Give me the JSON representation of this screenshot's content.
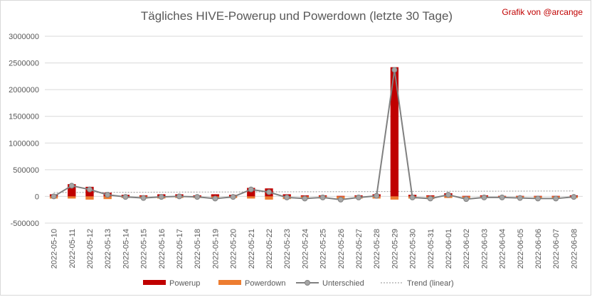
{
  "title": "Tägliches HIVE-Powerup und Powerdown (letzte 30 Tage)",
  "credit": "Grafik von @arcange",
  "chart_data": {
    "type": "bar",
    "title": "Tägliches HIVE-Powerup und Powerdown (letzte 30 Tage)",
    "categories": [
      "2022-05-10",
      "2022-05-11",
      "2022-05-12",
      "2022-05-13",
      "2022-05-14",
      "2022-05-15",
      "2022-05-16",
      "2022-05-17",
      "2022-05-18",
      "2022-05-19",
      "2022-05-20",
      "2022-05-21",
      "2022-05-22",
      "2022-05-23",
      "2022-05-24",
      "2022-05-25",
      "2022-05-26",
      "2022-05-27",
      "2022-05-28",
      "2022-05-29",
      "2022-05-30",
      "2022-05-31",
      "2022-06-01",
      "2022-06-02",
      "2022-06-03",
      "2022-06-04",
      "2022-06-05",
      "2022-06-06",
      "2022-06-07",
      "2022-06-08"
    ],
    "ylim": [
      -500000,
      3000000
    ],
    "yticks": [
      "3000000",
      "2500000",
      "2000000",
      "1500000",
      "1000000",
      "500000",
      "0",
      "-500000"
    ],
    "ytick_values": [
      3000000,
      2500000,
      2000000,
      1500000,
      1000000,
      500000,
      0,
      -500000
    ],
    "grid": true,
    "legend_position": "bottom",
    "series": [
      {
        "name": "Powerup",
        "kind": "bar",
        "color": "#c00000",
        "values": [
          40000,
          230000,
          180000,
          70000,
          30000,
          20000,
          40000,
          40000,
          20000,
          40000,
          30000,
          160000,
          150000,
          40000,
          20000,
          20000,
          10000,
          20000,
          40000,
          2420000,
          30000,
          20000,
          60000,
          10000,
          20000,
          10000,
          10000,
          10000,
          10000,
          20000
        ]
      },
      {
        "name": "Powerdown",
        "kind": "bar",
        "color": "#ed7d31",
        "values": [
          -40000,
          -40000,
          -60000,
          -50000,
          -30000,
          -40000,
          -40000,
          -30000,
          -30000,
          -50000,
          -30000,
          -40000,
          -60000,
          -50000,
          -50000,
          -40000,
          -50000,
          -40000,
          -40000,
          -60000,
          -40000,
          -50000,
          -30000,
          -40000,
          -30000,
          -30000,
          -40000,
          -40000,
          -40000,
          -30000
        ]
      },
      {
        "name": "Unterschied",
        "kind": "line",
        "color": "#808080",
        "values": [
          0,
          200000,
          130000,
          30000,
          -10000,
          -30000,
          -10000,
          0,
          -10000,
          -40000,
          -10000,
          130000,
          80000,
          -20000,
          -40000,
          -20000,
          -60000,
          -20000,
          10000,
          2370000,
          -20000,
          -40000,
          30000,
          -50000,
          -20000,
          -20000,
          -30000,
          -40000,
          -40000,
          -10000
        ]
      },
      {
        "name": "Trend (linear)",
        "kind": "trend",
        "color": "#a6a6a6",
        "values": [
          73000,
          74000,
          75000,
          76000,
          77000,
          78000,
          79000,
          80000,
          81000,
          82000,
          83000,
          84000,
          85000,
          86000,
          87000,
          88000,
          89000,
          90000,
          91000,
          92000,
          93000,
          94000,
          95000,
          96000,
          97000,
          98000,
          99000,
          100000,
          101000,
          102000
        ]
      }
    ]
  }
}
